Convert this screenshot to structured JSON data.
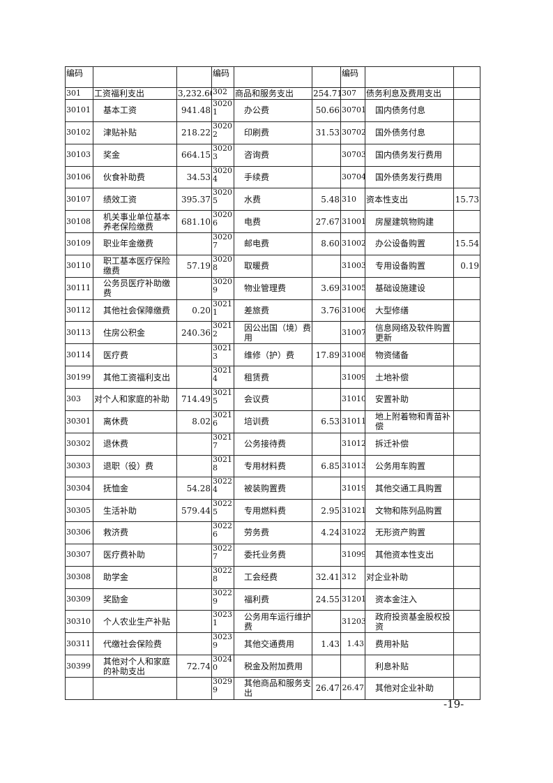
{
  "header": [
    "编码",
    "",
    "",
    "编码",
    "",
    "",
    "编码",
    "",
    ""
  ],
  "rows": [
    [
      "301",
      "工资福利支出",
      "3,232.60",
      "302",
      "商品和服务支出",
      "254.71",
      "307",
      "债务利息及费用支出",
      ""
    ],
    [
      "30101",
      "基本工资",
      "941.48",
      "30201",
      "办公费",
      "50.66",
      "30701",
      "国内债务付息",
      ""
    ],
    [
      "30102",
      "津贴补贴",
      "218.22",
      "30202",
      "印刷费",
      "31.53",
      "30702",
      "国外债务付息",
      ""
    ],
    [
      "30103",
      "奖金",
      "664.15",
      "30203",
      "咨询费",
      "",
      "30703",
      "国内债务发行费用",
      ""
    ],
    [
      "30106",
      "伙食补助费",
      "34.53",
      "30204",
      "手续费",
      "",
      "30704",
      "国外债务发行费用",
      ""
    ],
    [
      "30107",
      "绩效工资",
      "395.37",
      "30205",
      "水费",
      "5.48",
      "310",
      "资本性支出",
      "15.73"
    ],
    [
      "30108",
      "机关事业单位基本养老保险缴费",
      "681.10",
      "30206",
      "电费",
      "27.67",
      "31001",
      "房屋建筑物购建",
      ""
    ],
    [
      "30109",
      "职业年金缴费",
      "",
      "30207",
      "邮电费",
      "8.60",
      "31002",
      "办公设备购置",
      "15.54"
    ],
    [
      "30110",
      "职工基本医疗保险缴费",
      "57.19",
      "30208",
      "取暖费",
      "",
      "31003",
      "专用设备购置",
      "0.19"
    ],
    [
      "30111",
      "公务员医疗补助缴费",
      "",
      "30209",
      "物业管理费",
      "3.69",
      "31005",
      "基础设施建设",
      ""
    ],
    [
      "30112",
      "其他社会保障缴费",
      "0.20",
      "30211",
      "差旅费",
      "3.76",
      "31006",
      "大型修缮",
      ""
    ],
    [
      "30113",
      "住房公积金",
      "240.36",
      "30212",
      "因公出国（境）费用",
      "",
      "31007",
      "信息网络及软件购置更新",
      ""
    ],
    [
      "30114",
      "医疗费",
      "",
      "30213",
      "维修（护）费",
      "17.89",
      "31008",
      "物资储备",
      ""
    ],
    [
      "30199",
      "其他工资福利支出",
      "",
      "30214",
      "租赁费",
      "",
      "31009",
      "土地补偿",
      ""
    ],
    [
      "303",
      "对个人和家庭的补助",
      "714.49",
      "30215",
      "会议费",
      "",
      "31010",
      "安置补助",
      ""
    ],
    [
      "30301",
      "离休费",
      "8.02",
      "30216",
      "培训费",
      "6.53",
      "31011",
      "地上附着物和青苗补偿",
      ""
    ],
    [
      "30302",
      "退休费",
      "",
      "30217",
      "公务接待费",
      "",
      "31012",
      "拆迁补偿",
      ""
    ],
    [
      "30303",
      "退职（役）费",
      "",
      "30218",
      "专用材料费",
      "6.85",
      "31013",
      "公务用车购置",
      ""
    ],
    [
      "30304",
      "抚恤金",
      "54.28",
      "30224",
      "被装购置费",
      "",
      "31019",
      "其他交通工具购置",
      ""
    ],
    [
      "30305",
      "生活补助",
      "579.44",
      "30225",
      "专用燃料费",
      "2.95",
      "31021",
      "文物和陈列品购置",
      ""
    ],
    [
      "30306",
      "救济费",
      "",
      "30226",
      "劳务费",
      "4.24",
      "31022",
      "无形资产购置",
      ""
    ],
    [
      "30307",
      "医疗费补助",
      "",
      "30227",
      "委托业务费",
      "",
      "31099",
      "其他资本性支出",
      ""
    ],
    [
      "30308",
      "助学金",
      "",
      "30228",
      "工会经费",
      "32.41",
      "312",
      "对企业补助",
      ""
    ],
    [
      "30309",
      "奖励金",
      "",
      "30229",
      "福利费",
      "24.55",
      "31201",
      "资本金注入",
      ""
    ],
    [
      "30310",
      "个人农业生产补贴",
      "",
      "30231",
      "公务用车运行维护费",
      "",
      "31203",
      "政府投资基金股权投资",
      ""
    ],
    [
      "30311",
      "代缴社会保险费",
      "",
      "30239",
      "其他交通费用",
      "1.43",
      "1.43",
      "费用补贴",
      ""
    ],
    [
      "30399",
      "其他对个人和家庭的补助支出",
      "72.74",
      "30240",
      "税金及附加费用",
      "",
      "",
      "利息补贴",
      ""
    ],
    [
      "",
      "",
      "",
      "30299",
      "其他商品和服务支出",
      "26.47",
      "26.47",
      "其他对企业补助",
      ""
    ]
  ],
  "page_number": "-19-"
}
